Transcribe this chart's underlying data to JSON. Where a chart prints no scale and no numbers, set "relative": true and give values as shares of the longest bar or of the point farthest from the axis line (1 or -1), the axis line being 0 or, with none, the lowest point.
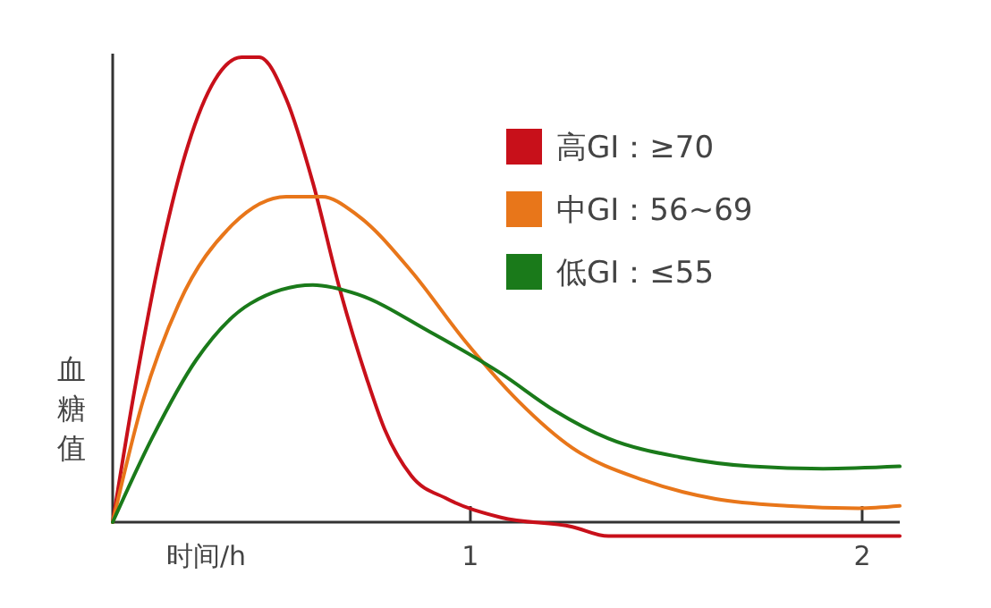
{
  "chart_data": {
    "type": "line",
    "relative": true,
    "xlabel": "时间/h",
    "ylabel": "血糖值",
    "xlim": [
      0.087,
      2.096
    ],
    "xticks": [
      1,
      2
    ],
    "legend": "top right",
    "grid": false,
    "line_style": "solid",
    "series": [
      {
        "name": "高GI：≥70",
        "color": "#c8101a",
        "x": [
          0.087,
          0.142,
          0.21,
          0.279,
          0.347,
          0.416,
          0.461,
          0.53,
          0.598,
          0.667,
          0.735,
          0.781,
          0.849,
          0.941,
          1.078,
          1.26,
          1.352,
          1.534,
          1.808,
          2.096
        ],
        "values": [
          0,
          0.28,
          0.58,
          0.81,
          0.95,
          1,
          1,
          0.91,
          0.73,
          0.5,
          0.31,
          0.2,
          0.1,
          0.05,
          0.01,
          -0.01,
          -0.03,
          -0.03,
          -0.03,
          -0.03
        ]
      },
      {
        "name": "中GI：56~69",
        "color": "#e8761a",
        "x": [
          0.087,
          0.164,
          0.256,
          0.393,
          0.53,
          0.621,
          0.712,
          0.849,
          0.986,
          1.123,
          1.26,
          1.443,
          1.626,
          1.808,
          1.991,
          2.096
        ],
        "values": [
          0,
          0.26,
          0.47,
          0.64,
          0.7,
          0.7,
          0.66,
          0.54,
          0.39,
          0.26,
          0.16,
          0.09,
          0.05,
          0.035,
          0.03,
          0.035
        ]
      },
      {
        "name": "低GI：≤55",
        "color": "#1a7a1a",
        "x": [
          0.087,
          0.187,
          0.301,
          0.438,
          0.598,
          0.712,
          0.895,
          1.078,
          1.215,
          1.352,
          1.534,
          1.717,
          1.9,
          2.096
        ],
        "values": [
          0,
          0.18,
          0.35,
          0.47,
          0.51,
          0.49,
          0.41,
          0.32,
          0.24,
          0.18,
          0.14,
          0.12,
          0.115,
          0.12
        ]
      }
    ]
  }
}
